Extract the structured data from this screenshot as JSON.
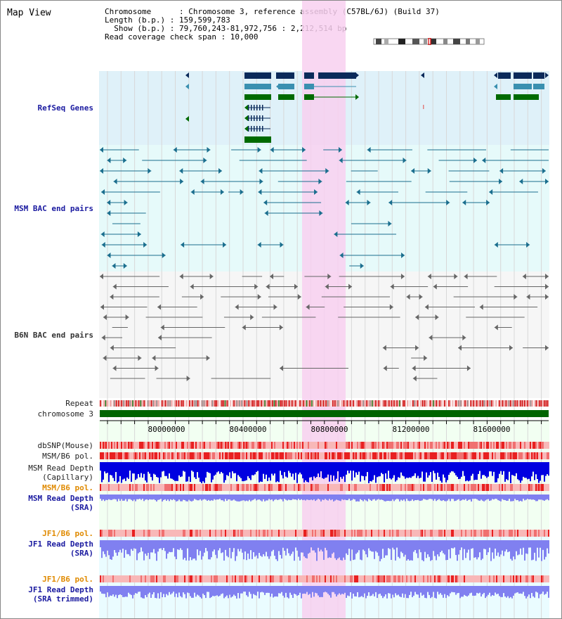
{
  "title": "Map View",
  "info": {
    "line1": "Chromosome      : Chromosome 3, reference assembly (C57BL/6J) (Build 37)",
    "line2": "Length (b.p.) : 159,599,783",
    "line3": "  Show (b.p.) : 79,760,243-81,972,756 : 2,212,514 bp",
    "line4": "Read coverage check span : 10,000"
  },
  "tracks": {
    "refseq": "RefSeq Genes",
    "msm_bac": "MSM BAC end pairs",
    "b6n_bac": "B6N BAC end pairs",
    "repeat": "Repeat",
    "chromosome": "chromosome 3",
    "dbsnp": "dbSNP(Mouse)",
    "msm_pol1": "MSM/B6 pol.",
    "msm_depth_cap": "MSM Read Depth\n(Capillary)",
    "msm_pol2": "MSM/B6 pol.",
    "msm_depth_sra": "MSM Read Depth\n(SRA)",
    "jf1_pol1": "JF1/B6 pol.",
    "jf1_depth_sra": "JF1 Read Depth\n(SRA)",
    "jf1_pol2": "JF1/B6 pol.",
    "jf1_depth_trim": "JF1 Read Depth\n(SRA trimmed)"
  },
  "axis_ticks": [
    "80000000",
    "80400000",
    "80800000",
    "81200000",
    "81600000"
  ],
  "colors": {
    "refseq_bg": "#dff1f9",
    "msm_bg": "#e6fafa",
    "b6n_bg": "#f6f6f6",
    "highlight": "#f8d0f0",
    "chromosome": "#006400",
    "gene_navy": "#0a2a5a",
    "gene_teal": "#3a90b0",
    "gene_green": "#006a00",
    "msm_line": "#1a6e8e",
    "b6n_line": "#666666",
    "depth_blue": "#0000e0",
    "depth_lightblue": "#8080f0"
  }
}
